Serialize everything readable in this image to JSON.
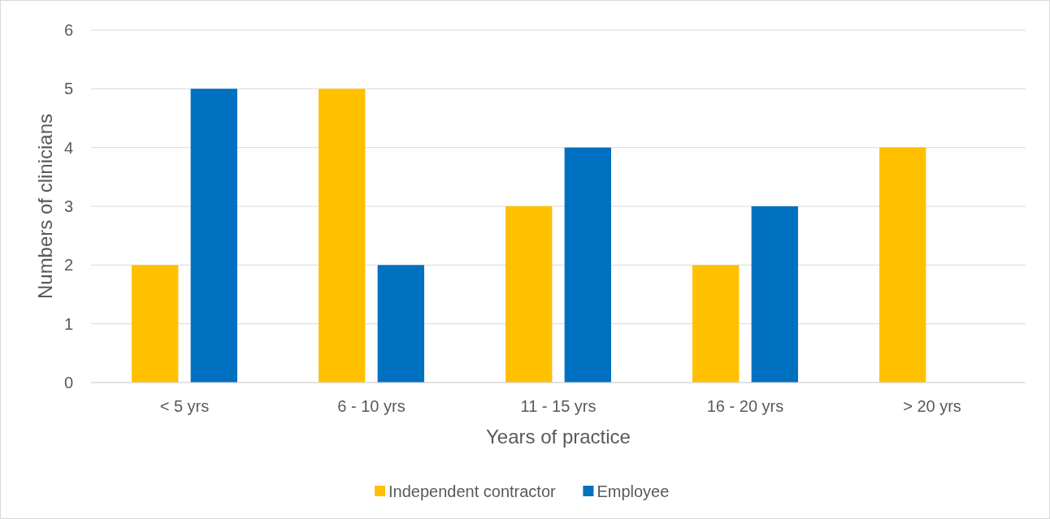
{
  "chart_data": {
    "type": "bar",
    "xlabel": "Years of practice",
    "ylabel": "Numbers of clinicians",
    "categories": [
      "< 5 yrs",
      "6 - 10 yrs",
      "11 - 15 yrs",
      "16 - 20 yrs",
      "> 20 yrs"
    ],
    "series": [
      {
        "name": "Independent contractor",
        "color": "#ffc000",
        "values": [
          2,
          5,
          3,
          2,
          4
        ]
      },
      {
        "name": "Employee",
        "color": "#0070c0",
        "values": [
          5,
          2,
          4,
          3,
          0
        ]
      }
    ],
    "ylim": [
      0,
      6
    ],
    "yticks": [
      0,
      1,
      2,
      3,
      4,
      5,
      6
    ],
    "grid": "y",
    "legend": "bottom"
  }
}
